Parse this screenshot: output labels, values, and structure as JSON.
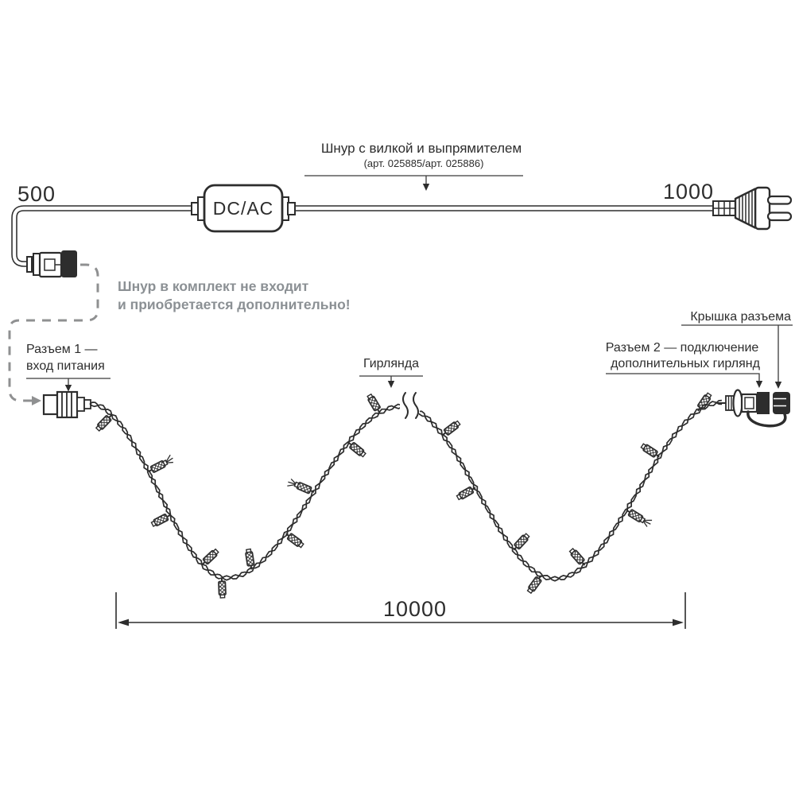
{
  "colors": {
    "ink": "#2d2d2d",
    "note_gray": "#8b9094",
    "dash_gray": "#8f9091",
    "background": "#ffffff"
  },
  "top_callout": {
    "title": "Шнур с вилкой и выпрямителем",
    "subtitle": "(арт. 025885/арт. 025886)"
  },
  "dims": {
    "cord_left": "500",
    "cord_right": "1000",
    "garland": "10000"
  },
  "adapter": {
    "label": "DC/AC"
  },
  "note": {
    "line1": "Шнур в комплект не входит",
    "line2": "и приобретается дополнительно!"
  },
  "connector1": {
    "line1": "Разъем 1 —",
    "line2": "вход питания"
  },
  "garland": {
    "label": "Гирлянда"
  },
  "cap": {
    "label": "Крышка разъема"
  },
  "connector2": {
    "line1": "Разъем 2 — подключение",
    "line2": "дополнительных гирлянд"
  }
}
